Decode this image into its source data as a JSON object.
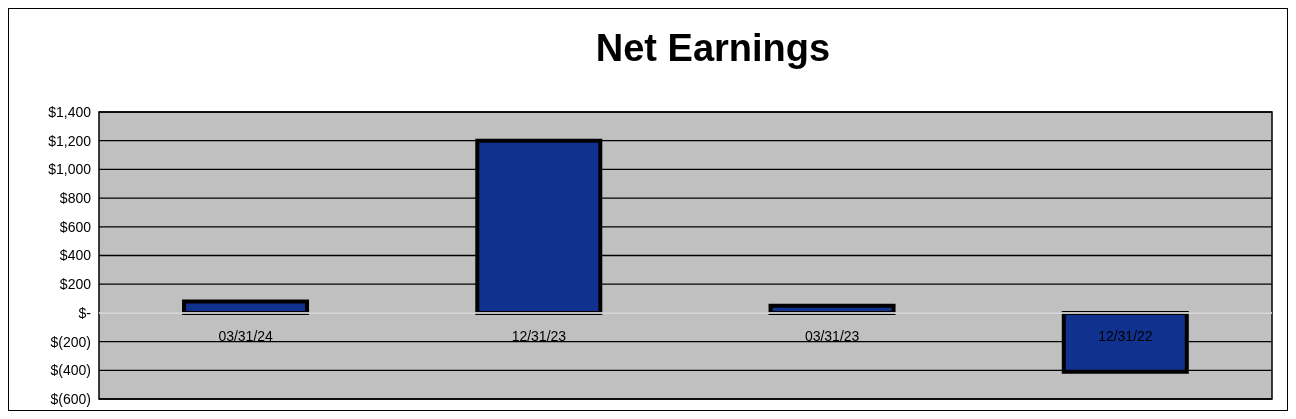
{
  "chart_data": {
    "type": "bar",
    "title": "Net Earnings",
    "categories": [
      "03/31/24",
      "12/31/23",
      "03/31/23",
      "12/31/22"
    ],
    "values": [
      80,
      1200,
      50,
      -410
    ],
    "color": "#10318e",
    "ylim": [
      -600,
      1400
    ],
    "yticks": [
      {
        "value": -600,
        "label": "$(600)"
      },
      {
        "value": -400,
        "label": "$(400)"
      },
      {
        "value": -200,
        "label": "$(200)"
      },
      {
        "value": 0,
        "label": "$-"
      },
      {
        "value": 200,
        "label": "$200"
      },
      {
        "value": 400,
        "label": "$400"
      },
      {
        "value": 600,
        "label": "$600"
      },
      {
        "value": 800,
        "label": "$800"
      },
      {
        "value": 1000,
        "label": "$1,000"
      },
      {
        "value": 1200,
        "label": "$1,200"
      },
      {
        "value": 1400,
        "label": "$1,400"
      }
    ],
    "grid": "y"
  }
}
